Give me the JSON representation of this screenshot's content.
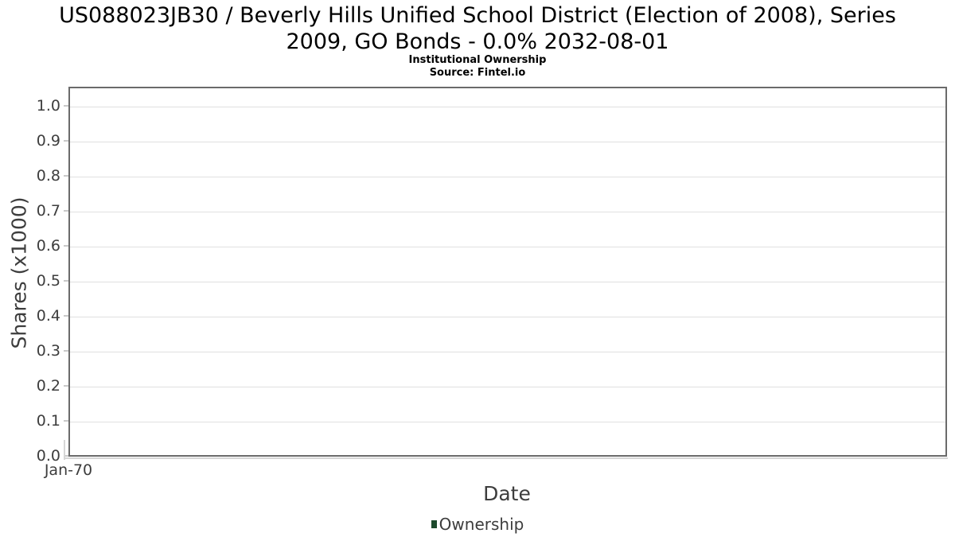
{
  "chart_data": {
    "type": "line",
    "title_lines": [
      "US088023JB30 / Beverly Hills Unified School District (Election of 2008), Series",
      "2009, GO Bonds - 0.0% 2032-08-01"
    ],
    "title": "US088023JB30 / Beverly Hills Unified School District (Election of 2008), Series 2009, GO Bonds - 0.0% 2032-08-01",
    "subtitle": "Institutional Ownership",
    "source": "Source: Fintel.io",
    "xlabel": "Date",
    "ylabel": "Shares (x1000)",
    "yticks": [
      "0.0",
      "0.1",
      "0.2",
      "0.3",
      "0.4",
      "0.5",
      "0.6",
      "0.7",
      "0.8",
      "0.9",
      "1.0"
    ],
    "ylim": [
      0,
      1.05
    ],
    "xticks": [
      "Jan-70"
    ],
    "grid": "horizontal",
    "legend_position": "bottom-center",
    "series": [
      {
        "name": "Ownership",
        "color": "#1d4a2c",
        "points": []
      }
    ],
    "colors": {
      "panel_border": "#6b6b6b",
      "gridline": "#e0e0e0",
      "tick_mark": "#c9c9c9",
      "axis_line": "#d6d6d6",
      "label_text": "#3d3d3d",
      "title_text": "#000000",
      "legend_swatch": "#1d4a2c",
      "background": "#ffffff"
    }
  }
}
